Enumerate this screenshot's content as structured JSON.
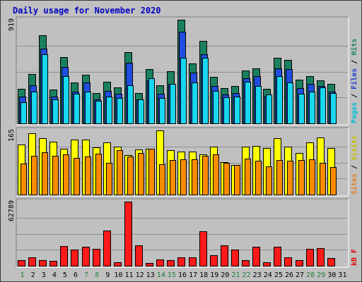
{
  "chart_data": {
    "type": "bar",
    "title": "Daily usage for November 2020",
    "categories": [
      "1",
      "2",
      "3",
      "4",
      "5",
      "6",
      "7",
      "8",
      "9",
      "10",
      "11",
      "12",
      "13",
      "14",
      "15",
      "16",
      "17",
      "18",
      "19",
      "20",
      "21",
      "22",
      "23",
      "24",
      "25",
      "26",
      "27",
      "28",
      "29",
      "30",
      "31"
    ],
    "weekend_days": [
      "1",
      "7",
      "8",
      "14",
      "15",
      "21",
      "22",
      "28",
      "29"
    ],
    "panels": [
      {
        "id": "hits",
        "ymax_label": "919",
        "ymax": 919,
        "legend": [
          {
            "text": "Pages",
            "color": "#00c0d8"
          },
          {
            "text": " / ",
            "color": "#000000"
          },
          {
            "text": "Files",
            "color": "#2040d0"
          },
          {
            "text": " / ",
            "color": "#000000"
          },
          {
            "text": "Hits",
            "color": "#208060"
          }
        ],
        "series": [
          {
            "name": "Hits",
            "color": "#1a8060",
            "values": [
              306,
              440,
              780,
              300,
              590,
              360,
              430,
              270,
              370,
              320,
              630,
              270,
              480,
              340,
              460,
              919,
              530,
              730,
              410,
              310,
              330,
              470,
              490,
              305,
              580,
              560,
              390,
              420,
              380,
              350,
              0
            ]
          },
          {
            "name": "Files",
            "color": "#1f4ee0",
            "values": [
              240,
              340,
              660,
              240,
              500,
              280,
              360,
              215,
              290,
              260,
              540,
              215,
              380,
              260,
              350,
              810,
              450,
              610,
              330,
              255,
              270,
              400,
              420,
              245,
              490,
              480,
              310,
              350,
              330,
              280,
              0
            ]
          },
          {
            "name": "Pages",
            "color": "#18d8f0",
            "values": [
              190,
              280,
              610,
              210,
              420,
              260,
              280,
              200,
              240,
              225,
              340,
              210,
              400,
              225,
              350,
              580,
              360,
              580,
              290,
              230,
              240,
              370,
              330,
              255,
              420,
              360,
              260,
              280,
              320,
              270,
              0
            ]
          }
        ]
      },
      {
        "id": "visits",
        "ymax_label": "165",
        "ymax": 165,
        "legend": [
          {
            "text": "Sites",
            "color": "#e08020"
          },
          {
            "text": " / ",
            "color": "#000000"
          },
          {
            "text": "Visits",
            "color": "#c8c000"
          }
        ],
        "series": [
          {
            "name": "Visits",
            "color": "#ffff00",
            "values": [
              128,
              158,
              145,
              136,
              117,
              141,
              141,
              121,
              135,
              123,
              101,
              116,
              118,
              165,
              115,
              110,
              110,
              103,
              123,
              83,
              77,
              124,
              125,
              119,
              145,
              124,
              107,
              135,
              147,
              120,
              0
            ]
          },
          {
            "name": "Sites",
            "color": "#ff8c00",
            "values": [
              80,
              100,
              108,
              100,
              103,
              94,
              98,
              105,
              82,
              115,
              98,
              107,
              118,
              78,
              88,
              91,
              90,
              99,
              103,
              81,
              76,
              92,
              87,
              73,
              89,
              87,
              89,
              91,
              81,
              70,
              0
            ]
          }
        ]
      },
      {
        "id": "kbytes",
        "ymax_label": "62789",
        "ymax": 62789,
        "legend": [
          {
            "text": "kB F",
            "color": "#e00000"
          }
        ],
        "series": [
          {
            "name": "kB F",
            "color": "#ff1a1a",
            "values": [
              5700,
              8400,
              5700,
              4700,
              19000,
              16000,
              18300,
              16700,
              34500,
              3400,
              62789,
              20100,
              2700,
              6300,
              5300,
              8200,
              8500,
              33800,
              10300,
              20100,
              15600,
              5300,
              18500,
              3600,
              18400,
              8400,
              5300,
              16300,
              17200,
              7900,
              0
            ]
          }
        ]
      }
    ]
  }
}
